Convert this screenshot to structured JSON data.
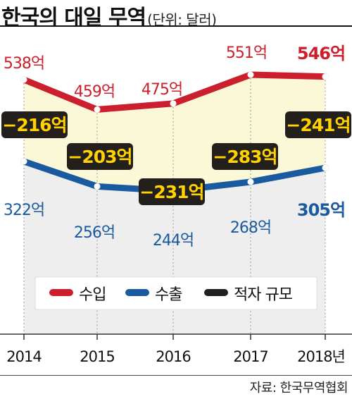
{
  "header": {
    "title": "한국의 대일 무역",
    "unit": "(단위: 달러)"
  },
  "source": "자료: 한국무역협회",
  "colors": {
    "import": "#cc1f2d",
    "export": "#1a5a9e",
    "deficit_box": "#231f1c",
    "deficit_text": "#ffd200",
    "band": "#fbf8d8",
    "below": "#eeeeee"
  },
  "chart_data": {
    "type": "line",
    "categories": [
      "2014",
      "2015",
      "2016",
      "2017",
      "2018년"
    ],
    "series": [
      {
        "name": "수입",
        "values": [
          538,
          459,
          475,
          551,
          546
        ],
        "labels": [
          "538억",
          "459억",
          "475억",
          "551억",
          "546억"
        ]
      },
      {
        "name": "수출",
        "values": [
          322,
          256,
          244,
          268,
          305
        ],
        "labels": [
          "322억",
          "256억",
          "244억",
          "268억",
          "305억"
        ]
      }
    ],
    "deficit": {
      "name": "적자 규모",
      "values": [
        -216,
        -203,
        -231,
        -283,
        -241
      ],
      "labels": [
        "−216억",
        "−203억",
        "−231억",
        "−283억",
        "−241억"
      ]
    },
    "legend": [
      "수입",
      "수출",
      "적자 규모"
    ],
    "legend_position": "bottom-center",
    "ylim": [
      0,
      600
    ]
  }
}
